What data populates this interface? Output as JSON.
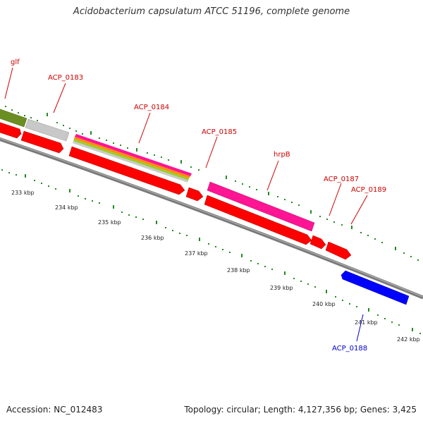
{
  "title": "Acidobacterium capsulatum ATCC 51196, complete genome",
  "footer": {
    "accession": "Accession: NC_012483",
    "summary": "Topology: circular; Length: 4,127,356 bp; Genes: 3,425"
  },
  "colors": {
    "cds": "#ff0000",
    "highlight": "#ff1493",
    "olive": "#6b8e23",
    "gray": "#c0c0c0",
    "reverse": "#0000ff",
    "backbone": "#808080",
    "ticks": "#228b22",
    "label_red": "#cc0000",
    "label_blue": "#0000cc"
  },
  "genes": [
    {
      "label": "glf",
      "color": "#cc0000"
    },
    {
      "label": "ACP_0183",
      "color": "#cc0000"
    },
    {
      "label": "ACP_0184",
      "color": "#cc0000"
    },
    {
      "label": "ACP_0185",
      "color": "#cc0000"
    },
    {
      "label": "hrpB",
      "color": "#cc0000"
    },
    {
      "label": "ACP_0187",
      "color": "#cc0000"
    },
    {
      "label": "ACP_0189",
      "color": "#cc0000"
    },
    {
      "label": "ACP_0188",
      "color": "#0000cc"
    }
  ],
  "ticks": [
    "233 kbp",
    "234 kbp",
    "235 kbp",
    "236 kbp",
    "237 kbp",
    "238 kbp",
    "239 kbp",
    "240 kbp",
    "241 kbp",
    "242 kbp"
  ]
}
